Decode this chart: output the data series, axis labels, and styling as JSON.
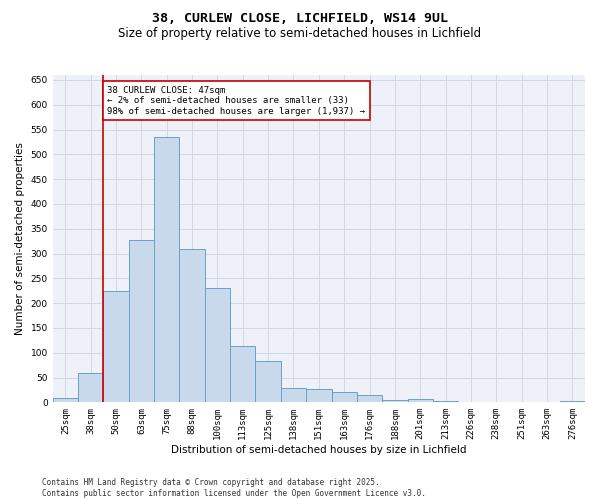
{
  "title_line1": "38, CURLEW CLOSE, LICHFIELD, WS14 9UL",
  "title_line2": "Size of property relative to semi-detached houses in Lichfield",
  "xlabel": "Distribution of semi-detached houses by size in Lichfield",
  "ylabel": "Number of semi-detached properties",
  "categories": [
    "25sqm",
    "38sqm",
    "50sqm",
    "63sqm",
    "75sqm",
    "88sqm",
    "100sqm",
    "113sqm",
    "125sqm",
    "138sqm",
    "151sqm",
    "163sqm",
    "176sqm",
    "188sqm",
    "201sqm",
    "213sqm",
    "226sqm",
    "238sqm",
    "251sqm",
    "263sqm",
    "276sqm"
  ],
  "values": [
    8,
    60,
    225,
    327,
    535,
    310,
    230,
    113,
    84,
    29,
    26,
    20,
    15,
    5,
    7,
    2,
    0,
    0,
    0,
    0,
    2
  ],
  "bar_color": "#c9d9ec",
  "bar_edge_color": "#6aa0c7",
  "annotation_text": "38 CURLEW CLOSE: 47sqm\n← 2% of semi-detached houses are smaller (33)\n98% of semi-detached houses are larger (1,937) →",
  "vline_color": "#cc0000",
  "annotation_box_color": "#cc0000",
  "ylim": [
    0,
    660
  ],
  "yticks": [
    0,
    50,
    100,
    150,
    200,
    250,
    300,
    350,
    400,
    450,
    500,
    550,
    600,
    650
  ],
  "grid_color": "#d0d8e8",
  "background_color": "#eef2f8",
  "footer_text": "Contains HM Land Registry data © Crown copyright and database right 2025.\nContains public sector information licensed under the Open Government Licence v3.0.",
  "title_fontsize": 9.5,
  "subtitle_fontsize": 8.5,
  "axis_label_fontsize": 7.5,
  "tick_fontsize": 6.5,
  "annotation_fontsize": 6.5,
  "footer_fontsize": 5.5
}
